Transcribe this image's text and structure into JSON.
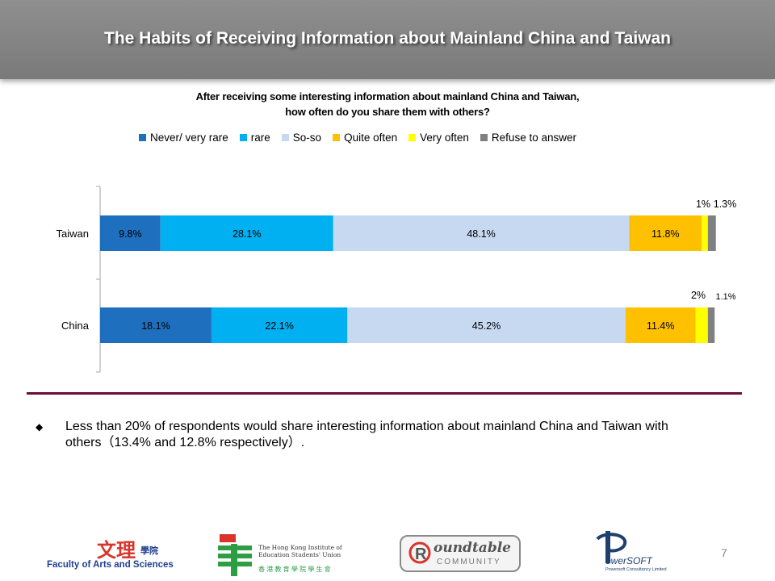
{
  "header": {
    "title": "The Habits of Receiving Information about Mainland China and Taiwan"
  },
  "question": {
    "line1": "After receiving some interesting information about mainland China and Taiwan,",
    "line2": "how often do you share them with others?"
  },
  "chart_data": {
    "type": "bar",
    "orientation": "horizontal",
    "stacked": true,
    "categories": [
      "Taiwan",
      "China"
    ],
    "series": [
      {
        "name": "Never/ very rare",
        "color": "#1f6fbf",
        "values": [
          9.8,
          18.1
        ],
        "labels": [
          "9.8%",
          "18.1%"
        ]
      },
      {
        "name": "rare",
        "color": "#00b0f0",
        "values": [
          28.1,
          22.1
        ],
        "labels": [
          "28.1%",
          "22.1%"
        ]
      },
      {
        "name": "So-so",
        "color": "#c6d9f1",
        "values": [
          48.1,
          45.2
        ],
        "labels": [
          "48.1%",
          "45.2%"
        ]
      },
      {
        "name": "Quite often",
        "color": "#ffc000",
        "values": [
          11.8,
          11.4
        ],
        "labels": [
          "11.8%",
          "11.4%"
        ]
      },
      {
        "name": "Very often",
        "color": "#ffff00",
        "values": [
          1,
          2
        ],
        "labels": [
          "1%",
          "2%"
        ]
      },
      {
        "name": "Refuse to answer",
        "color": "#808080",
        "values": [
          1.3,
          1.1
        ],
        "labels": [
          "1.3%",
          "1.1%"
        ]
      }
    ],
    "xlim": [
      0,
      100
    ],
    "legend_position": "top",
    "grid": false
  },
  "bullets": [
    {
      "icon": "diamond-bullet-icon",
      "text": "Less than 20% of respondents would share interesting information about mainland China and Taiwan with others（13.4% and 12.8% respectively）."
    }
  ],
  "footer": {
    "logos": {
      "arts": {
        "chinese": "文理",
        "chinese_small": "學院",
        "english": "Faculty of Arts and Sciences"
      },
      "hkies": {
        "line1": "The Hong Kong Institute of",
        "line2": "Education Students' Union",
        "chinese": "香 港 教 育 學 院 學 生 會"
      },
      "roundtable": {
        "line1": "oundtable",
        "line2": "COMMUNITY"
      },
      "powersoft": {
        "main": "owerSOFT",
        "sub": "Powersoft Consultancy Limited"
      }
    },
    "page_number": "7"
  }
}
